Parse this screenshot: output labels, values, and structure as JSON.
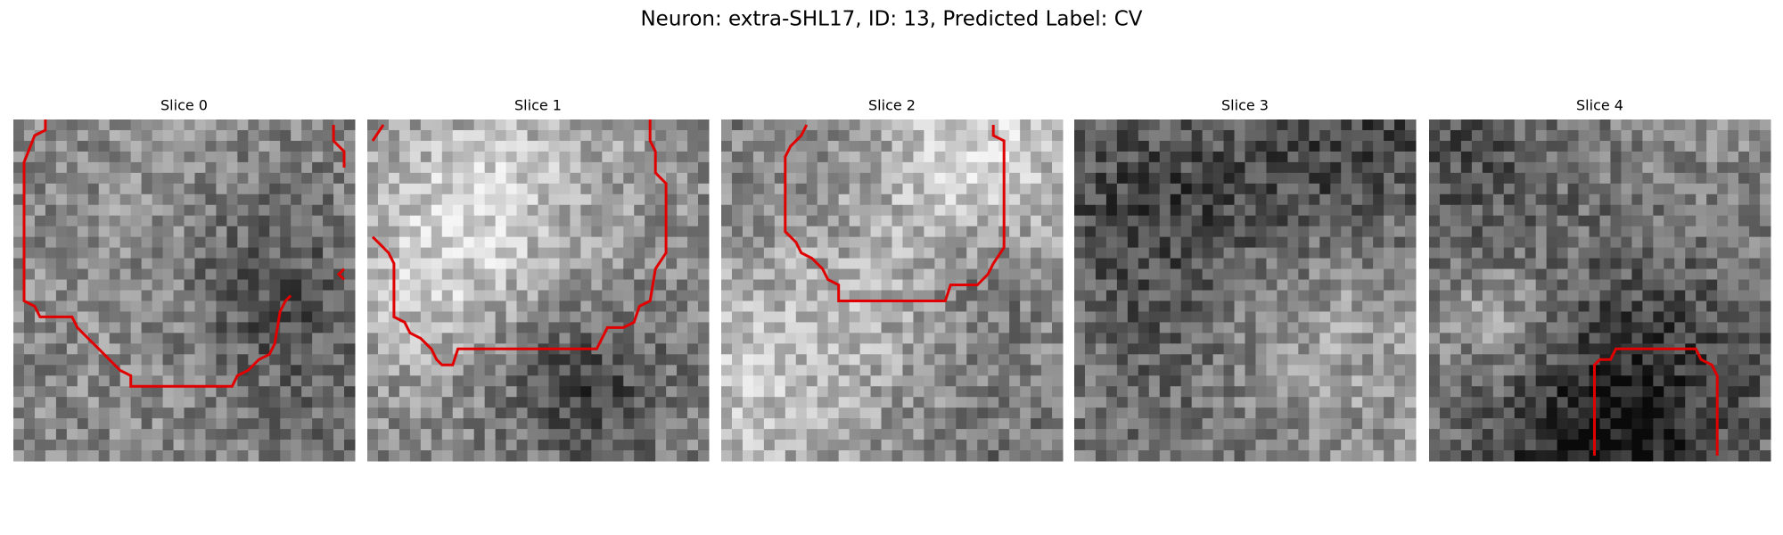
{
  "figure": {
    "title": "Neuron: extra-SHL17, ID: 13, Predicted Label: CV",
    "panels": [
      {
        "title": "Slice 0"
      },
      {
        "title": "Slice 1"
      },
      {
        "title": "Slice 2"
      },
      {
        "title": "Slice 3"
      },
      {
        "title": "Slice 4"
      }
    ]
  }
}
